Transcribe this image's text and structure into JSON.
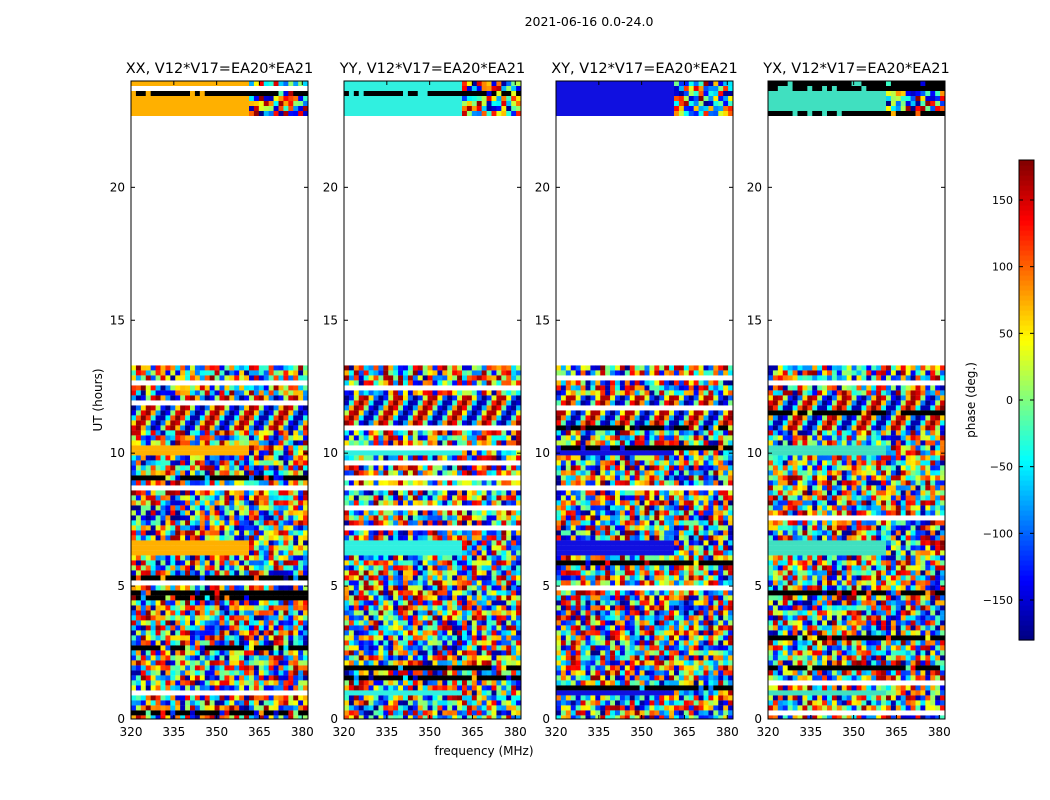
{
  "figure": {
    "suptitle": "2021-06-16 0.0-24.0"
  },
  "chart_data": {
    "type": "heatmap",
    "xlabel": "frequency (MHz)",
    "ylabel": "UT (hours)",
    "xlim": [
      320,
      382
    ],
    "ylim": [
      0,
      24
    ],
    "xticks": [
      320,
      335,
      350,
      365,
      380
    ],
    "yticks": [
      0,
      5,
      10,
      15,
      20
    ],
    "panels": [
      {
        "title": "XX, V12*V17=EA20*EA21",
        "stable_color": "#ffb000"
      },
      {
        "title": "YY, V12*V17=EA20*EA21",
        "stable_color": "#30f0e0"
      },
      {
        "title": "XY, V12*V17=EA20*EA21",
        "stable_color": "#1010e0"
      },
      {
        "title": "YX, V12*V17=EA20*EA21",
        "stable_color": "#40e0c0"
      }
    ],
    "data_ranges_hours": [
      [
        0,
        13.3
      ],
      [
        22.8,
        24
      ]
    ],
    "colorbar": {
      "label": "phase (deg.)",
      "range": [
        -180,
        180
      ],
      "ticks": [
        -150,
        -100,
        -50,
        0,
        50,
        100,
        150
      ],
      "colormap": "jet"
    }
  }
}
